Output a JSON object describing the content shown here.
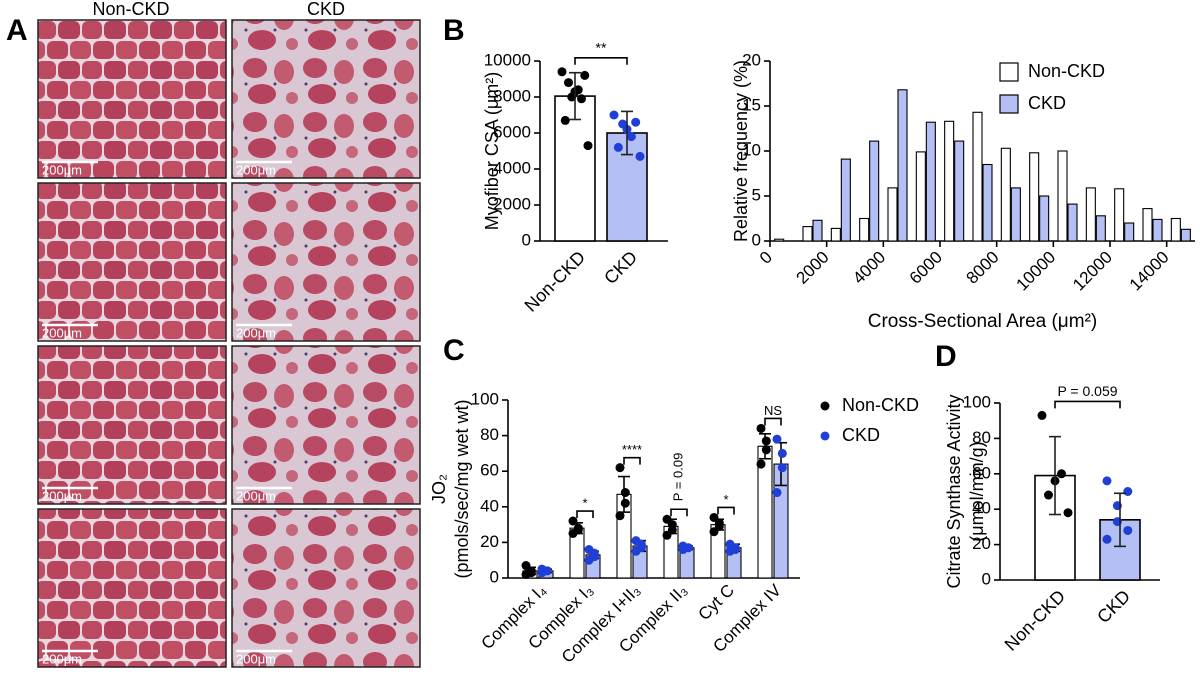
{
  "figure": {
    "panel_labels": [
      "A",
      "B",
      "C",
      "D"
    ],
    "histology": {
      "columns": [
        "Non-CKD",
        "CKD"
      ],
      "scale_bars": [
        "200μm",
        "200μm",
        "200μm",
        "200μm",
        "200μm",
        "200μm",
        "200μm",
        "200μm"
      ]
    }
  },
  "chart_data": [
    {
      "type": "bar",
      "ylabel": [
        "Myofiber CSA (μm²)"
      ],
      "categories": [
        "Non-CKD",
        "CKD"
      ],
      "values": [
        8050,
        6000
      ],
      "errors": [
        1300,
        1200
      ],
      "points": [
        [
          9400,
          9200,
          8800,
          8400,
          8300,
          8000,
          7900,
          6700,
          5300
        ],
        [
          7000,
          6600,
          6500,
          6200,
          5800,
          5200,
          4700
        ]
      ],
      "colors": [
        "#ffffff",
        "#b3bff5"
      ],
      "point_colors": [
        "#000000",
        "#1f3fd6"
      ],
      "ylim": [
        0,
        10000
      ],
      "yticks": [
        0,
        2000,
        4000,
        6000,
        8000,
        10000
      ],
      "annotation": "**"
    },
    {
      "type": "bar",
      "ylabel": [
        "Relative frequency (%)"
      ],
      "xlabel": "Cross-Sectional Area (μm²)",
      "x": [
        500,
        1500,
        2500,
        3500,
        4500,
        5500,
        6500,
        7500,
        8500,
        9500,
        10500,
        11500,
        12500,
        13500,
        14500
      ],
      "series": [
        {
          "name": "Non-CKD",
          "color": "#ffffff",
          "values": [
            0.2,
            1.6,
            1.4,
            2.5,
            5.9,
            9.9,
            13.3,
            14.3,
            10.3,
            9.8,
            10.0,
            5.9,
            5.8,
            3.6,
            2.5
          ]
        },
        {
          "name": "CKD",
          "color": "#b3bff5",
          "values": [
            0,
            2.3,
            9.1,
            11.1,
            16.8,
            13.2,
            11.1,
            8.5,
            5.9,
            5.0,
            4.1,
            2.8,
            2.0,
            2.4,
            1.3
          ]
        }
      ],
      "xlim": [
        0,
        15000
      ],
      "xticks": [
        0,
        2000,
        4000,
        6000,
        8000,
        10000,
        12000,
        14000
      ],
      "ylim": [
        0,
        20
      ],
      "yticks": [
        0,
        5,
        10,
        15,
        20
      ],
      "legend": "upper right"
    },
    {
      "type": "bar",
      "ylabel": [
        "JO₂",
        "(pmols/sec/mg wet wt)"
      ],
      "categories": [
        "Complex I₄",
        "Complex I₃",
        "Complex I+II₃",
        "Complex II₃",
        "Cyt C",
        "Complex IV"
      ],
      "series": [
        {
          "name": "Non-CKD",
          "color": "#ffffff",
          "point_color": "#000000",
          "values": [
            4,
            28,
            47,
            29,
            30,
            74
          ],
          "errors": [
            2,
            3,
            10,
            4,
            3,
            7
          ],
          "points": [
            [
              7,
              4,
              3,
              2
            ],
            [
              32,
              28,
              27,
              25
            ],
            [
              62,
              48,
              42,
              35
            ],
            [
              33,
              30,
              27,
              24
            ],
            [
              34,
              31,
              29,
              26
            ],
            [
              84,
              77,
              72,
              64
            ]
          ]
        },
        {
          "name": "CKD",
          "color": "#b3bff5",
          "point_color": "#1f3fd6",
          "values": [
            4,
            13,
            18,
            17,
            17,
            64
          ],
          "errors": [
            1,
            2,
            3,
            1,
            2,
            12
          ],
          "points": [
            [
              5,
              4,
              4,
              3
            ],
            [
              16,
              14,
              12,
              10
            ],
            [
              21,
              19,
              17,
              15
            ],
            [
              18,
              17,
              17,
              16
            ],
            [
              19,
              17,
              16,
              15
            ],
            [
              78,
              70,
              62,
              48
            ]
          ]
        }
      ],
      "significance": [
        null,
        "*",
        "****",
        "P = 0.09",
        "*",
        "NS"
      ],
      "ylim": [
        0,
        100
      ],
      "yticks": [
        0,
        20,
        40,
        60,
        80,
        100
      ],
      "legend": "right"
    },
    {
      "type": "bar",
      "ylabel": [
        "Citrate Synthase Activity",
        "(μmol/min/g)"
      ],
      "categories": [
        "Non-CKD",
        "CKD"
      ],
      "values": [
        59,
        34
      ],
      "errors": [
        22,
        15
      ],
      "points": [
        [
          93,
          60,
          56,
          48,
          38
        ],
        [
          56,
          50,
          42,
          33,
          28,
          23
        ]
      ],
      "colors": [
        "#ffffff",
        "#b3bff5"
      ],
      "point_colors": [
        "#000000",
        "#1f3fd6"
      ],
      "ylim": [
        0,
        100
      ],
      "yticks": [
        0,
        20,
        40,
        60,
        80,
        100
      ],
      "annotation": "P = 0.059"
    }
  ]
}
